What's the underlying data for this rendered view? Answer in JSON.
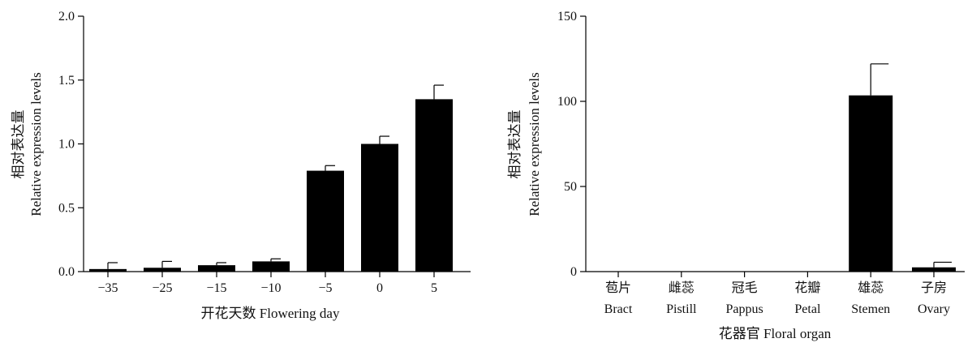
{
  "chart_data": [
    {
      "type": "bar",
      "xlabel": "开花天数 Flowering day",
      "ylabel_cn": "相对表达量",
      "ylabel_en": "Relative expression levels",
      "categories": [
        "−35",
        "−25",
        "−15",
        "−10",
        "−5",
        "0",
        "5"
      ],
      "values": [
        0.02,
        0.03,
        0.05,
        0.08,
        0.79,
        1.0,
        1.35
      ],
      "errors": [
        0.05,
        0.05,
        0.02,
        0.02,
        0.04,
        0.06,
        0.11
      ],
      "ylim": [
        0,
        2.0
      ],
      "yticks": [
        "0.0",
        "0.5",
        "1.0",
        "1.5",
        "2.0"
      ],
      "grid": false,
      "color": "#000000"
    },
    {
      "type": "bar",
      "xlabel": "花器官 Floral organ",
      "ylabel_cn": "相对表达量",
      "ylabel_en": "Relative expression levels",
      "categories_cn": [
        "苞片",
        "雌蕊",
        "冠毛",
        "花瓣",
        "雄蕊",
        "子房"
      ],
      "categories_en": [
        "Bract",
        "Pistill",
        "Pappus",
        "Petal",
        "Stemen",
        "Ovary"
      ],
      "values": [
        0,
        0,
        0,
        0,
        103.5,
        2.5
      ],
      "errors": [
        0,
        0,
        0,
        0,
        18.5,
        3.0
      ],
      "ylim": [
        0,
        150
      ],
      "yticks": [
        "0",
        "50",
        "100",
        "150"
      ],
      "grid": false,
      "color": "#000000"
    }
  ]
}
